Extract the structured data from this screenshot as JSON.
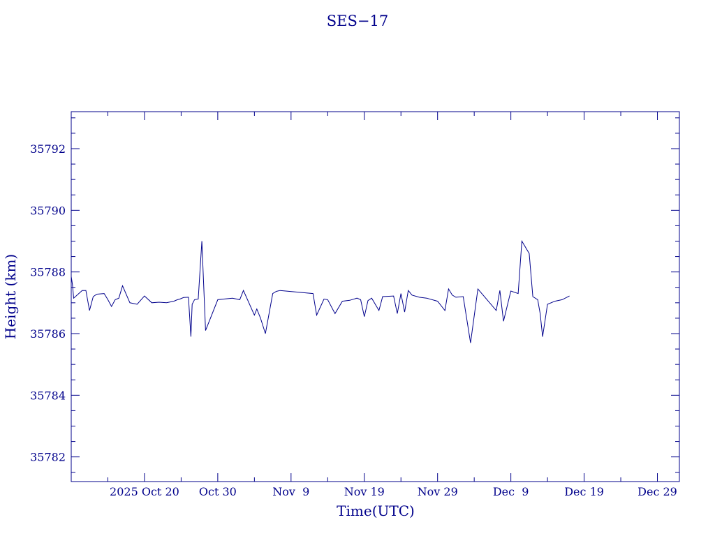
{
  "chart_data": {
    "type": "line",
    "title": "SES−17",
    "xlabel": "Time(UTC)",
    "ylabel": "Height (km)",
    "xlim": [
      "2025-10-10T00:00",
      "2026-01-01T00:00"
    ],
    "ylim": [
      35781.2,
      35793.2
    ],
    "x_ticks": [
      {
        "date": "2025-10-20",
        "label": "2025 Oct 20"
      },
      {
        "date": "2025-10-30",
        "label": "Oct 30"
      },
      {
        "date": "2025-11-09",
        "label": "Nov  9"
      },
      {
        "date": "2025-11-19",
        "label": "Nov 19"
      },
      {
        "date": "2025-11-29",
        "label": "Nov 29"
      },
      {
        "date": "2025-12-09",
        "label": "Dec  9"
      },
      {
        "date": "2025-12-19",
        "label": "Dec 19"
      },
      {
        "date": "2025-12-29",
        "label": "Dec 29"
      }
    ],
    "y_ticks": [
      35782,
      35784,
      35786,
      35788,
      35790,
      35792
    ],
    "grid": false,
    "color": "#00008b",
    "series": [
      {
        "x": [
          "2025-10-10T00:00",
          "2025-10-10T04:00",
          "2025-10-10T08:00",
          "2025-10-11T12:00",
          "2025-10-12T00:00",
          "2025-10-12T12:00",
          "2025-10-13T00:00",
          "2025-10-13T12:00",
          "2025-10-14T12:00",
          "2025-10-15T00:00",
          "2025-10-15T12:00",
          "2025-10-16T00:00",
          "2025-10-16T12:00",
          "2025-10-17T00:00",
          "2025-10-18T00:00",
          "2025-10-19T00:00",
          "2025-10-20T00:00",
          "2025-10-21T00:00",
          "2025-10-22T00:00",
          "2025-10-23T00:00",
          "2025-10-24T00:00",
          "2025-10-24T12:00",
          "2025-10-24T20:00",
          "2025-10-25T08:00",
          "2025-10-26T00:00",
          "2025-10-26T08:00",
          "2025-10-26T12:00",
          "2025-10-26T20:00",
          "2025-10-27T08:00",
          "2025-10-27T20:00",
          "2025-10-28T08:00",
          "2025-10-30T00:00",
          "2025-11-01T00:00",
          "2025-11-02T00:00",
          "2025-11-02T12:00",
          "2025-11-04T00:00",
          "2025-11-04T08:00",
          "2025-11-04T20:00",
          "2025-11-05T12:00",
          "2025-11-06T12:00",
          "2025-11-07T00:00",
          "2025-11-07T12:00",
          "2025-11-12T00:00",
          "2025-11-12T12:00",
          "2025-11-13T12:00",
          "2025-11-14T00:00",
          "2025-11-15T00:00",
          "2025-11-16T00:00",
          "2025-11-17T00:00",
          "2025-11-18T00:00",
          "2025-11-18T12:00",
          "2025-11-19T00:00",
          "2025-11-19T12:00",
          "2025-11-20T00:00",
          "2025-11-21T00:00",
          "2025-11-21T12:00",
          "2025-11-23T00:00",
          "2025-11-23T12:00",
          "2025-11-24T00:00",
          "2025-11-24T12:00",
          "2025-11-25T00:00",
          "2025-11-25T12:00",
          "2025-11-26T12:00",
          "2025-11-27T12:00",
          "2025-11-29T00:00",
          "2025-11-30T00:00",
          "2025-11-30T12:00",
          "2025-12-01T00:00",
          "2025-12-01T12:00",
          "2025-12-02T12:00",
          "2025-12-03T12:00",
          "2025-12-04T12:00",
          "2025-12-07T00:00",
          "2025-12-07T12:00",
          "2025-12-08T00:00",
          "2025-12-09T00:00",
          "2025-12-10T00:00",
          "2025-12-10T12:00",
          "2025-12-11T12:00",
          "2025-12-12T00:00",
          "2025-12-12T16:00",
          "2025-12-13T00:00",
          "2025-12-13T08:00",
          "2025-12-14T00:00",
          "2025-12-15T00:00",
          "2025-12-16T00:00",
          "2025-12-17T00:00"
        ],
        "values": [
          35787.85,
          35787.6,
          35787.15,
          35787.4,
          35787.4,
          35786.75,
          35787.2,
          35787.28,
          35787.3,
          35787.1,
          35786.88,
          35787.1,
          35787.15,
          35787.55,
          35787.0,
          35786.95,
          35787.22,
          35787.0,
          35787.02,
          35787.0,
          35787.05,
          35787.1,
          35787.12,
          35787.17,
          35787.18,
          35785.9,
          35786.95,
          35787.1,
          35787.12,
          35789.0,
          35786.1,
          35787.1,
          35787.15,
          35787.1,
          35787.4,
          35786.6,
          35786.8,
          35786.5,
          35786.0,
          35787.3,
          35787.37,
          35787.4,
          35787.3,
          35786.6,
          35787.12,
          35787.1,
          35786.65,
          35787.05,
          35787.08,
          35787.15,
          35787.1,
          35786.55,
          35787.07,
          35787.15,
          35786.75,
          35787.2,
          35787.22,
          35786.65,
          35787.3,
          35786.7,
          35787.4,
          35787.25,
          35787.18,
          35787.15,
          35787.05,
          35786.75,
          35787.45,
          35787.25,
          35787.18,
          35787.2,
          35785.7,
          35787.45,
          35786.75,
          35787.4,
          35786.4,
          35787.38,
          35787.3,
          35789.0,
          35788.6,
          35787.2,
          35787.1,
          35786.65,
          35785.9,
          35786.95,
          35787.05,
          35787.1,
          35787.22
        ]
      }
    ]
  }
}
